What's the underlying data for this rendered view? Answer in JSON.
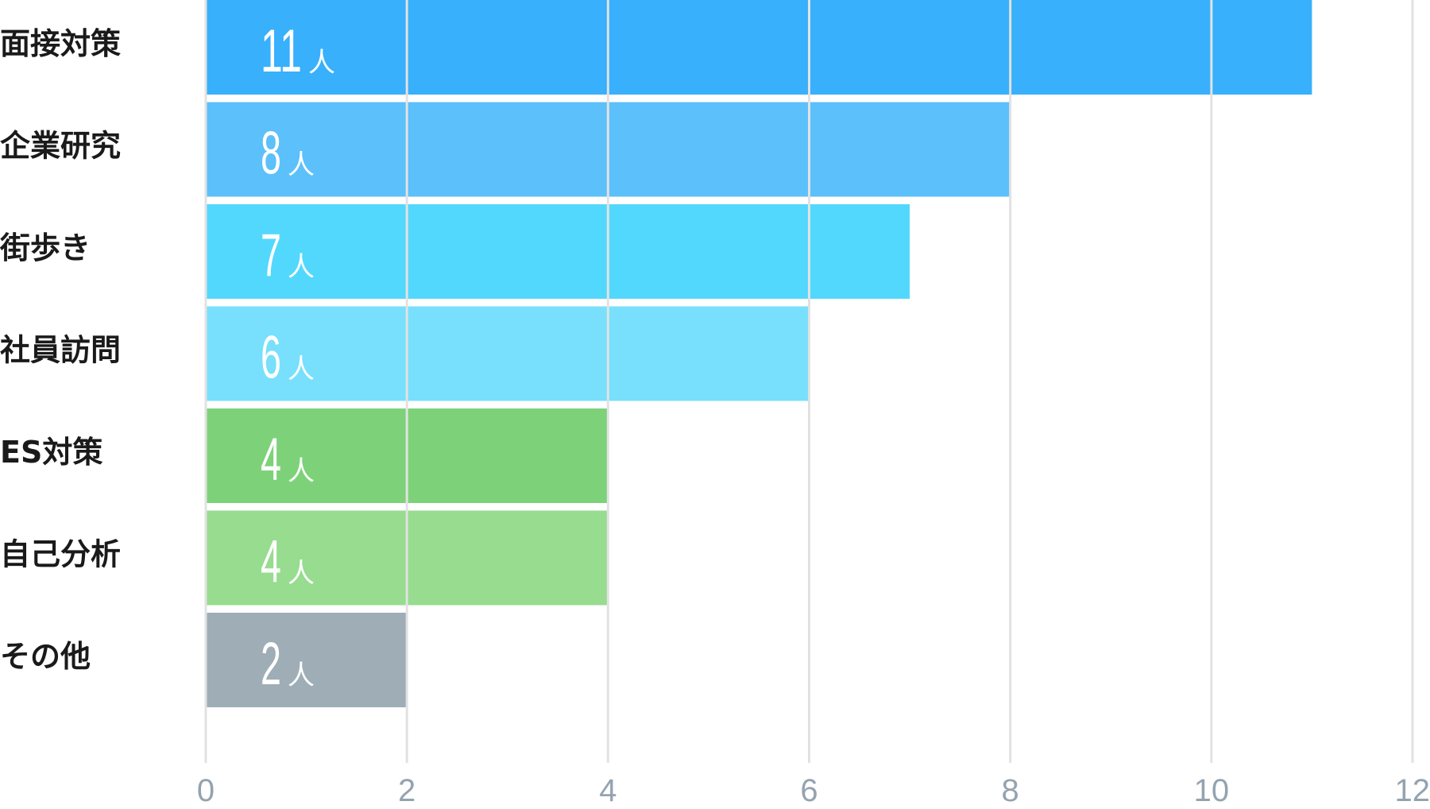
{
  "chart_data": {
    "type": "bar",
    "orientation": "horizontal",
    "categories": [
      "面接対策",
      "企業研究",
      "街歩き",
      "社員訪問",
      "ES対策",
      "自己分析",
      "その他"
    ],
    "values": [
      11,
      8,
      7,
      6,
      4,
      4,
      2
    ],
    "value_labels": [
      "11",
      "8",
      "7",
      "6",
      "4",
      "4",
      "2"
    ],
    "unit": "人",
    "colors": [
      "#38b0fb",
      "#5cc0fb",
      "#53d8fd",
      "#78e0fc",
      "#7dd279",
      "#97dc8f",
      "#9eadb6"
    ],
    "xlim": [
      0,
      12
    ],
    "xticks": [
      0,
      2,
      4,
      6,
      8,
      10,
      12
    ],
    "xtick_labels": [
      "0",
      "2",
      "4",
      "6",
      "8",
      "10",
      "12"
    ],
    "grid": true,
    "title": "",
    "xlabel": "",
    "ylabel": ""
  }
}
